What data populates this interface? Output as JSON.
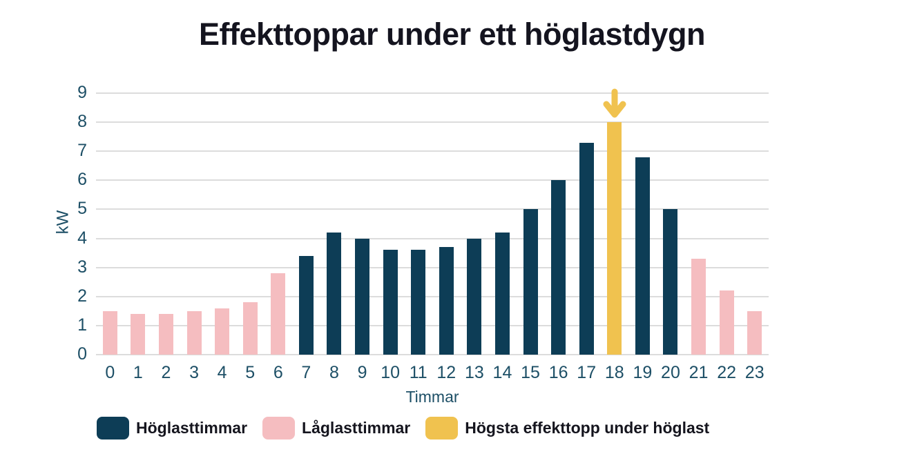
{
  "chart_data": {
    "type": "bar",
    "title": "Effekttoppar under ett höglastdygn",
    "xlabel": "Timmar",
    "ylabel": "kW",
    "ylim": [
      0,
      9
    ],
    "ytick_step": 1,
    "grid": true,
    "categories": [
      "0",
      "1",
      "2",
      "3",
      "4",
      "5",
      "6",
      "7",
      "8",
      "9",
      "10",
      "11",
      "12",
      "13",
      "14",
      "15",
      "16",
      "17",
      "18",
      "19",
      "20",
      "21",
      "22",
      "23"
    ],
    "values": [
      1.5,
      1.4,
      1.4,
      1.5,
      1.6,
      1.8,
      2.8,
      3.4,
      4.2,
      4.0,
      3.6,
      3.6,
      3.7,
      4.0,
      4.2,
      5.0,
      6.0,
      7.3,
      8.0,
      6.8,
      5.0,
      3.3,
      2.2,
      1.5
    ],
    "point_types": [
      "low",
      "low",
      "low",
      "low",
      "low",
      "low",
      "low",
      "high",
      "high",
      "high",
      "high",
      "high",
      "high",
      "high",
      "high",
      "high",
      "high",
      "high",
      "peak",
      "high",
      "high",
      "low",
      "low",
      "low"
    ],
    "colors": {
      "high": "#0d3d56",
      "low": "#f5bdc0",
      "peak": "#f0c24f",
      "axis_text": "#1d4f66",
      "title_text": "#14141f",
      "gridline": "#dcdcdc"
    },
    "peak_annotation": {
      "type": "down-arrow",
      "hour": 18,
      "color": "#f0c24f"
    },
    "legend_position": "bottom",
    "legend": [
      {
        "type": "high",
        "label": "Höglasttimmar"
      },
      {
        "type": "low",
        "label": "Låglasttimmar"
      },
      {
        "type": "peak",
        "label": "Högsta effekttopp under höglast"
      }
    ]
  }
}
